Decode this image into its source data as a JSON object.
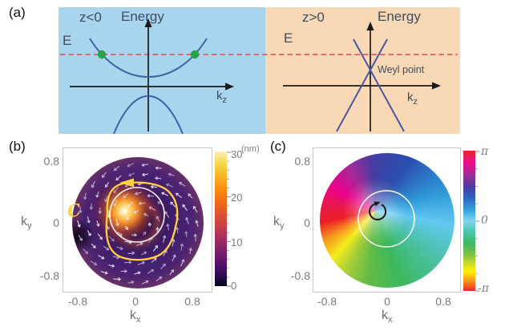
{
  "figure": {
    "panel_a": {
      "label": "(a)",
      "left": {
        "region": "z<0",
        "energy": "Energy",
        "fermi": "E",
        "axis_base": "k",
        "axis_sub": "z"
      },
      "right": {
        "region": "z>0",
        "energy": "Energy",
        "fermi": "E",
        "weyl": "Weyl point",
        "axis_base": "k",
        "axis_sub": "z"
      }
    },
    "panel_b": {
      "label": "(b)",
      "contour": "C",
      "ylabel_base": "k",
      "ylabel_sub": "y",
      "xlabel_base": "k",
      "xlabel_sub": "x",
      "y_ticks": [
        "0.8",
        "0",
        "-0.8"
      ],
      "x_ticks": [
        "-0.8",
        "0",
        "0.8"
      ],
      "cb_unit": "(nm)",
      "cb_ticks": [
        "30",
        "20",
        "10",
        "0"
      ]
    },
    "panel_c": {
      "label": "(c)",
      "ylabel_base": "k",
      "ylabel_sub": "y",
      "xlabel_base": "k",
      "xlabel_sub": "x",
      "y_ticks": [
        "0.8",
        "0",
        "-0.8"
      ],
      "x_ticks": [
        "-0.8",
        "0",
        "0.8"
      ],
      "cb_ticks": [
        "π",
        "0",
        "-π"
      ]
    }
  },
  "colors": {
    "panel_a_left_bg": "#a9d4ee",
    "panel_a_right_bg": "#f9d8b6",
    "band_curve": "#3c63a4",
    "cone_line": "#4a56a0",
    "fermi_dashed": "#dc4c4c",
    "weyl_dot_green": "#27a348",
    "contour_yellow": "#ffd23e",
    "quiver": "#efe9ff",
    "axis_black": "#1a1a1a"
  },
  "chart_data": [
    {
      "type": "line",
      "title": "Band dispersion for z<0 (left, blue background)",
      "xlabel": "k_z",
      "ylabel": "Energy",
      "annotations": [
        "z<0",
        "E (red dashed Fermi level)",
        "two green dots where E crosses upper band"
      ],
      "series": [
        {
          "name": "upper band",
          "shape": "upward-opening parabola, minimum above k-axis"
        },
        {
          "name": "lower band",
          "shape": "downward-opening parabola, maximum below k-axis"
        }
      ]
    },
    {
      "type": "line",
      "title": "Band dispersion for z>0 (right, orange background)",
      "xlabel": "k_z",
      "ylabel": "Energy",
      "annotations": [
        "z>0",
        "E (red dashed Fermi level)",
        "Weyl point at linear band crossing above k-axis"
      ],
      "series": [
        {
          "name": "linear cone",
          "shape": "two straight lines crossing at Weyl point"
        }
      ]
    },
    {
      "type": "heatmap",
      "title": "Panel (b): amplitude map with swirling vector field",
      "xlabel": "k_x",
      "ylabel": "k_y",
      "x_ticks": [
        -0.8,
        0,
        0.8
      ],
      "y_ticks": [
        -0.8,
        0,
        0.8
      ],
      "colorbar": {
        "label": "(nm)",
        "range": [
          0,
          30
        ],
        "ticks": [
          0,
          10,
          20,
          30
        ],
        "colormap": "inferno"
      },
      "annotations": [
        "yellow counterclockwise contour C with arrow",
        "white circle around center",
        "bright core offset up-left of disk center",
        "dark spot on left rim",
        "white quiver arrows circulating counterclockwise"
      ]
    },
    {
      "type": "heatmap",
      "title": "Panel (c): phase map winding around singularity",
      "xlabel": "k_x",
      "ylabel": "k_y",
      "x_ticks": [
        -0.8,
        0,
        0.8
      ],
      "y_ticks": [
        -0.8,
        0,
        0.8
      ],
      "colorbar": {
        "range": [
          "-π",
          "π"
        ],
        "ticks": [
          "-π",
          "0",
          "π"
        ],
        "colormap": "hsv phase"
      },
      "annotations": [
        "white circle around center",
        "black circular arrow around phase vortex core up-left of center"
      ]
    }
  ]
}
